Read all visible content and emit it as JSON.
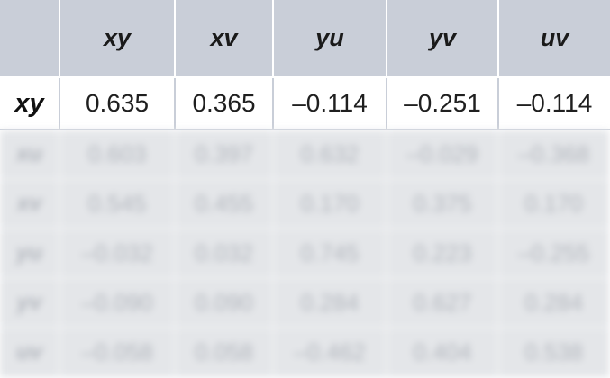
{
  "table": {
    "columns": [
      "xy",
      "xv",
      "yu",
      "yv",
      "uv"
    ],
    "rows": [
      {
        "label": "xy",
        "values": [
          "0.635",
          "0.365",
          "–0.114",
          "–0.251",
          "–0.114"
        ]
      },
      {
        "label": "xu",
        "values": [
          "0.603",
          "0.397",
          "0.632",
          "–0.029",
          "–0.368"
        ]
      },
      {
        "label": "xv",
        "values": [
          "0.545",
          "0.455",
          "0.170",
          "0.375",
          "0.170"
        ]
      },
      {
        "label": "yu",
        "values": [
          "–0.032",
          "0.032",
          "0.745",
          "0.223",
          "–0.255"
        ]
      },
      {
        "label": "yv",
        "values": [
          "–0.090",
          "0.090",
          "0.284",
          "0.627",
          "0.284"
        ]
      },
      {
        "label": "uv",
        "values": [
          "–0.058",
          "0.058",
          "–0.462",
          "0.404",
          "0.538"
        ]
      }
    ]
  }
}
